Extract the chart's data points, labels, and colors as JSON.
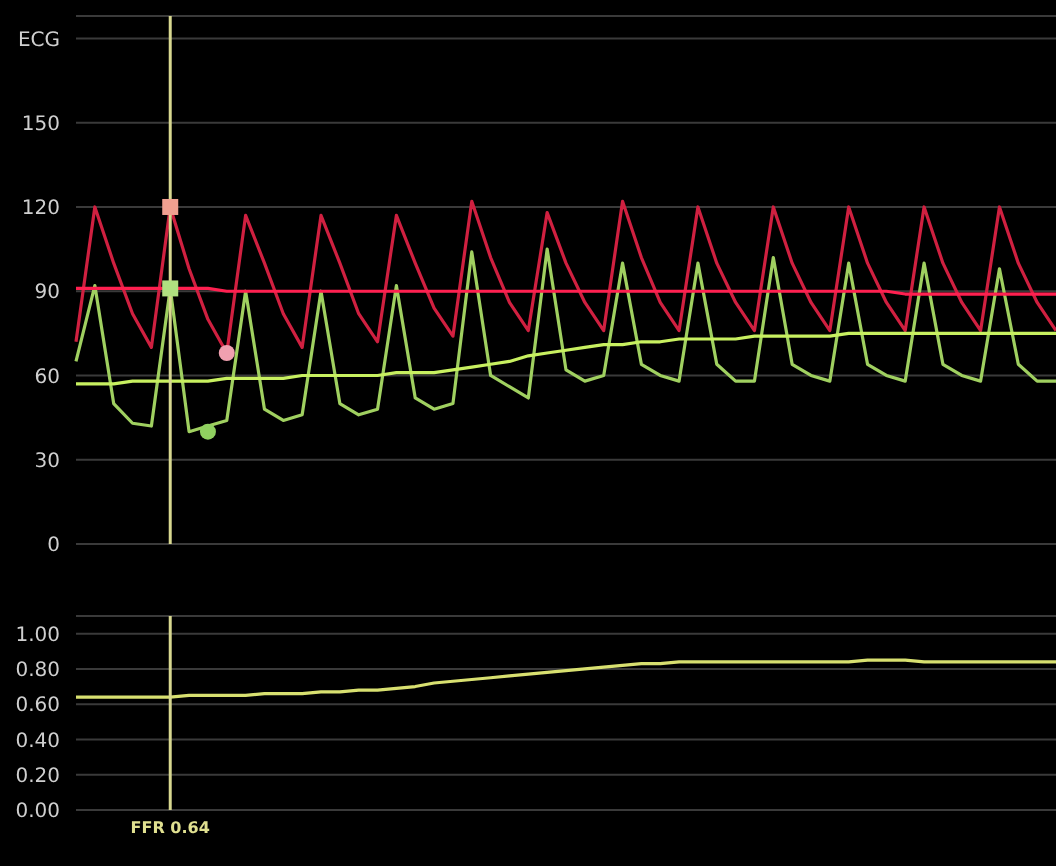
{
  "chart_data": [
    {
      "type": "line",
      "categories": [
        null,
        null,
        null,
        null,
        null,
        null,
        null,
        null,
        null,
        null,
        null,
        null,
        null,
        null,
        null,
        null,
        null,
        null,
        null,
        null,
        null,
        null,
        null,
        null,
        null,
        null,
        null,
        null,
        null,
        null,
        null,
        null,
        null,
        null,
        null,
        null,
        null,
        null,
        null,
        null,
        null,
        null,
        null,
        null,
        null,
        null,
        null,
        null,
        null,
        null,
        null,
        null,
        null
      ],
      "ylim": [
        0,
        188
      ],
      "yticks": [
        0,
        30,
        60,
        90,
        120,
        150,
        {
          "value": 180,
          "label": "ECG"
        }
      ],
      "grid": "y",
      "tick_labels": "y",
      "marker": "none",
      "series": [
        {
          "color": "#d02040",
          "values": [
            72,
            120,
            100,
            82,
            70,
            120,
            98,
            80,
            68,
            117,
            100,
            82,
            70,
            117,
            100,
            82,
            72,
            117,
            100,
            84,
            74,
            122,
            102,
            86,
            76,
            118,
            100,
            86,
            76,
            122,
            102,
            86,
            76,
            120,
            100,
            86,
            76,
            120,
            100,
            86,
            76,
            120,
            100,
            86,
            76,
            120,
            100,
            86,
            76,
            120,
            100,
            86,
            76
          ]
        },
        {
          "color": "#a0d060",
          "values": [
            65,
            92,
            50,
            43,
            42,
            91,
            40,
            42,
            44,
            90,
            48,
            44,
            46,
            90,
            50,
            46,
            48,
            92,
            52,
            48,
            50,
            104,
            60,
            56,
            52,
            105,
            62,
            58,
            60,
            100,
            64,
            60,
            58,
            100,
            64,
            58,
            58,
            102,
            64,
            60,
            58,
            100,
            64,
            60,
            58,
            100,
            64,
            60,
            58,
            98,
            64,
            58,
            58
          ]
        },
        {
          "color": "#ff2050",
          "values": [
            91,
            91,
            91,
            91,
            91,
            null,
            91,
            91,
            90,
            90,
            90,
            90,
            90,
            90,
            90,
            90,
            90,
            90,
            90,
            90,
            90,
            90,
            90,
            90,
            90,
            90,
            90,
            90,
            90,
            90,
            90,
            90,
            90,
            90,
            90,
            90,
            90,
            90,
            90,
            90,
            90,
            90,
            90,
            90,
            89,
            89,
            89,
            89,
            89,
            89,
            89,
            89,
            89
          ]
        },
        {
          "color": "#c8f060",
          "values": [
            57,
            57,
            57,
            58,
            58,
            58,
            58,
            58,
            59,
            59,
            59,
            59,
            60,
            60,
            60,
            60,
            60,
            61,
            61,
            61,
            62,
            63,
            64,
            65,
            67,
            68,
            69,
            70,
            71,
            71,
            72,
            72,
            73,
            73,
            73,
            73,
            74,
            74,
            74,
            74,
            74,
            75,
            75,
            75,
            75,
            75,
            75,
            75,
            75,
            75,
            75,
            75,
            75
          ]
        },
        {
          "type": "scatter",
          "marker": "square",
          "color": "#f0a090",
          "values": [
            null,
            null,
            null,
            null,
            null,
            120,
            null,
            null,
            null,
            null,
            null,
            null,
            null,
            null,
            null,
            null,
            null,
            null,
            null,
            null,
            null,
            null,
            null,
            null,
            null,
            null,
            null,
            null,
            null,
            null,
            null,
            null,
            null,
            null,
            null,
            null,
            null,
            null,
            null,
            null,
            null,
            null,
            null,
            null,
            null,
            null,
            null,
            null,
            null,
            null,
            null,
            null,
            null
          ]
        },
        {
          "type": "scatter",
          "marker": "square",
          "color": "#b0e080",
          "values": [
            null,
            null,
            null,
            null,
            null,
            91,
            null,
            null,
            null,
            null,
            null,
            null,
            null,
            null,
            null,
            null,
            null,
            null,
            null,
            null,
            null,
            null,
            null,
            null,
            null,
            null,
            null,
            null,
            null,
            null,
            null,
            null,
            null,
            null,
            null,
            null,
            null,
            null,
            null,
            null,
            null,
            null,
            null,
            null,
            null,
            null,
            null,
            null,
            null,
            null,
            null,
            null,
            null
          ]
        },
        {
          "type": "scatter",
          "marker": "circle",
          "color": "#f0a0b0",
          "values": [
            null,
            null,
            null,
            null,
            null,
            null,
            null,
            null,
            68,
            null,
            null,
            null,
            null,
            null,
            null,
            null,
            null,
            null,
            null,
            null,
            null,
            null,
            null,
            null,
            null,
            null,
            null,
            null,
            null,
            null,
            null,
            null,
            null,
            null,
            null,
            null,
            null,
            null,
            null,
            null,
            null,
            null,
            null,
            null,
            null,
            null,
            null,
            null,
            null,
            null,
            null,
            null,
            null
          ]
        },
        {
          "type": "scatter",
          "marker": "circle",
          "color": "#90d060",
          "values": [
            null,
            null,
            null,
            null,
            null,
            null,
            null,
            40,
            null,
            null,
            null,
            null,
            null,
            null,
            null,
            null,
            null,
            null,
            null,
            null,
            null,
            null,
            null,
            null,
            null,
            null,
            null,
            null,
            null,
            null,
            null,
            null,
            null,
            null,
            null,
            null,
            null,
            null,
            null,
            null,
            null,
            null,
            null,
            null,
            null,
            null,
            null,
            null,
            null,
            null,
            null,
            null,
            null
          ]
        }
      ]
    },
    {
      "type": "line",
      "categories": [
        null,
        null,
        null,
        null,
        null,
        null,
        null,
        null,
        null,
        null,
        null,
        null,
        null,
        null,
        null,
        null,
        null,
        null,
        null,
        null,
        null,
        null,
        null,
        null,
        null,
        null,
        null,
        null,
        null,
        null,
        null,
        null,
        null,
        null,
        null,
        null,
        null,
        null,
        null,
        null,
        null,
        null,
        null,
        null,
        null,
        null,
        null,
        null,
        null,
        null,
        null,
        null,
        null
      ],
      "ylim": [
        0,
        1.1
      ],
      "yticks": [
        {
          "value": 0,
          "label": "0.00"
        },
        {
          "value": 0.2,
          "label": "0.20"
        },
        {
          "value": 0.4,
          "label": "0.40"
        },
        {
          "value": 0.6,
          "label": "0.60"
        },
        {
          "value": 0.8,
          "label": "0.80"
        },
        {
          "value": 1,
          "label": "1.00"
        }
      ],
      "grid": "y",
      "tick_labels": "y",
      "marker": "none",
      "annotations": [
        "FFR 0.64"
      ],
      "series": [
        {
          "color": "#d8e070",
          "values": [
            0.64,
            0.64,
            0.64,
            0.64,
            0.64,
            0.64,
            0.65,
            0.65,
            0.65,
            0.65,
            0.66,
            0.66,
            0.66,
            0.67,
            0.67,
            0.68,
            0.68,
            0.69,
            0.7,
            0.72,
            0.73,
            0.74,
            0.75,
            0.76,
            0.77,
            0.78,
            0.79,
            0.8,
            0.81,
            0.82,
            0.83,
            0.83,
            0.84,
            0.84,
            0.84,
            0.84,
            0.84,
            0.84,
            0.84,
            0.84,
            0.84,
            0.84,
            0.85,
            0.85,
            0.85,
            0.84,
            0.84,
            0.84,
            0.84,
            0.84,
            0.84,
            0.84,
            0.84
          ]
        }
      ]
    }
  ]
}
